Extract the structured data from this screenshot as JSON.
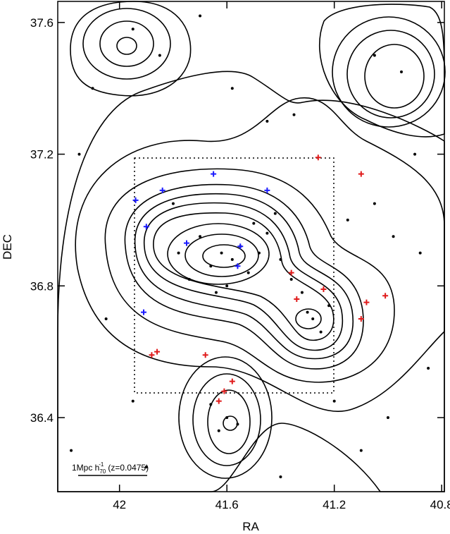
{
  "chart_data": {
    "type": "scatter",
    "xlabel": "RA",
    "ylabel": "DEC",
    "xlim": [
      42.23,
      40.79
    ],
    "ylim": [
      36.175,
      37.664
    ],
    "xticks": [
      42,
      41.6,
      41.2,
      40.8
    ],
    "yticks": [
      36.4,
      36.8,
      37.2,
      37.6
    ],
    "grid": false,
    "scale_bar": {
      "text": "1Mpc h",
      "subscript": "70",
      "superscript": "-1",
      "suffix": "(z=0.0475)"
    },
    "series": [
      {
        "color": "#000000",
        "marker": "dot",
        "x": [
          41.62,
          41.58,
          41.55,
          41.66,
          41.7,
          41.52,
          41.48,
          41.45,
          41.4,
          41.36,
          41.32,
          41.6,
          41.64,
          41.74,
          41.78,
          41.5,
          41.42,
          41.3,
          41.28,
          41.25,
          41.22,
          41.6,
          41.63,
          41.66,
          41.56,
          41.85,
          41.95,
          42.1,
          42.15,
          41.9,
          41.05,
          40.95,
          40.9,
          41.0,
          41.1,
          40.88,
          41.45,
          41.8,
          42.05,
          41.35,
          41.15,
          40.85,
          41.7,
          41.58,
          42.18,
          41.95,
          41.4,
          41.2,
          41.05,
          40.98
        ],
        "y": [
          36.9,
          36.88,
          36.92,
          36.86,
          36.95,
          36.84,
          36.9,
          36.96,
          36.88,
          36.82,
          36.78,
          36.8,
          36.78,
          36.82,
          36.9,
          36.99,
          37.02,
          36.72,
          36.7,
          36.66,
          36.74,
          36.4,
          36.36,
          36.44,
          36.38,
          37.5,
          37.58,
          37.4,
          37.2,
          36.25,
          37.5,
          37.45,
          37.2,
          36.4,
          36.3,
          36.9,
          37.3,
          37.05,
          36.7,
          37.32,
          37.0,
          36.55,
          37.62,
          37.4,
          36.3,
          36.45,
          36.22,
          36.45,
          37.05,
          36.95
        ]
      },
      {
        "color": "#1a1aff",
        "marker": "cross",
        "x": [
          41.65,
          41.84,
          41.45,
          41.94,
          41.9,
          41.75,
          41.55,
          41.56,
          41.91
        ],
        "y": [
          37.14,
          37.09,
          37.09,
          37.06,
          36.98,
          36.93,
          36.92,
          36.86,
          36.72
        ]
      },
      {
        "color": "#e01b1b",
        "marker": "cross",
        "x": [
          41.26,
          41.1,
          41.36,
          41.34,
          41.24,
          41.01,
          41.08,
          41.1,
          41.86,
          41.88,
          41.68,
          41.58,
          41.61,
          41.63
        ],
        "y": [
          37.19,
          37.14,
          36.84,
          36.76,
          36.79,
          36.77,
          36.75,
          36.7,
          36.6,
          36.59,
          36.59,
          36.51,
          36.48,
          36.45
        ]
      }
    ]
  }
}
